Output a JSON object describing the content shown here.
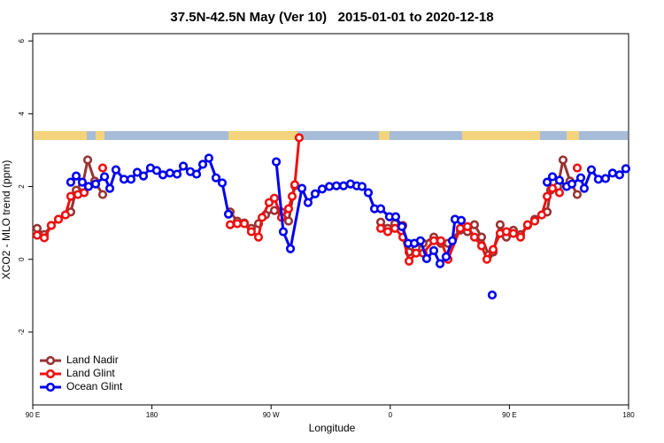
{
  "chart_data": {
    "type": "line",
    "title": "37.5N-42.5N May (Ver 10)   2015-01-01 to 2020-12-18",
    "x_label": "Longitude",
    "y_label": "XCO2 - MLO trend (ppm)",
    "xlim": [
      90,
      540
    ],
    "ylim": [
      -4,
      6.2
    ],
    "xticks": [
      {
        "value": 90,
        "label": "90 E"
      },
      {
        "value": 180,
        "label": "180"
      },
      {
        "value": 270,
        "label": "90 W"
      },
      {
        "value": 360,
        "label": "0"
      },
      {
        "value": 450,
        "label": "90 E"
      },
      {
        "value": 540,
        "label": "180"
      }
    ],
    "yticks": [
      -2,
      0,
      2,
      4,
      6
    ],
    "legend": "bottom-left",
    "series": [
      {
        "name": "Land Nadir",
        "color": "#993333",
        "x": [
          93.3,
          98.7,
          104,
          109.4,
          114.7,
          118.7,
          122.8,
          127.4,
          131.5,
          136.8,
          142.8,
          239.1,
          244.5,
          249.8,
          255.1,
          260.5,
          265.8,
          272.5,
          277.9,
          283.2,
          287.9,
          352.8,
          358.1,
          363.5,
          369.5,
          374.2,
          379.5,
          384.8,
          392.9,
          398.2,
          403.6,
          412.9,
          418.3,
          423.6,
          429,
          434.3,
          437.7,
          443,
          447.7,
          453,
          458.4,
          463.7,
          469.1,
          474.4,
          478.5,
          481.1,
          486.5,
          490.5,
          495.8,
          501.2
        ],
        "values": [
          0.85,
          0.68,
          0.93,
          1.1,
          1.22,
          1.3,
          1.9,
          2.0,
          2.73,
          2.15,
          1.78,
          1.3,
          1.05,
          1.0,
          0.85,
          0.98,
          1.22,
          1.34,
          1.3,
          1.05,
          2.02,
          1.02,
          0.85,
          0.98,
          0.93,
          0.2,
          0.32,
          0.44,
          0.61,
          0.44,
          0.44,
          0.8,
          0.76,
          0.95,
          0.61,
          0.12,
          0.2,
          0.95,
          0.61,
          0.8,
          0.68,
          0.93,
          1.1,
          1.22,
          1.3,
          1.9,
          2.0,
          2.73,
          2.15,
          1.78
        ]
      },
      {
        "name": "Land Glint",
        "color": "#ee1111",
        "x": [
          93.3,
          98.7,
          104,
          109.4,
          114.7,
          118.7,
          124.1,
          128.8,
          142.8,
          239.1,
          244.5,
          249.8,
          255.1,
          260.5,
          263.2,
          268.5,
          272.5,
          277.9,
          283.2,
          285.9,
          287.9,
          291.2,
          352.8,
          358.1,
          363.5,
          369.5,
          374.2,
          379.5,
          384.8,
          392.9,
          398.2,
          403.6,
          412.9,
          418.3,
          423.6,
          429,
          433,
          437.7,
          443,
          447.7,
          453,
          458.4,
          463.7,
          469.1,
          474.4,
          478.5,
          482.5,
          487.8,
          501.2
        ],
        "values": [
          0.66,
          0.59,
          0.93,
          1.1,
          1.22,
          1.73,
          1.78,
          1.83,
          2.51,
          0.95,
          0.98,
          0.98,
          0.76,
          0.61,
          1.15,
          1.56,
          1.68,
          1.15,
          1.39,
          1.73,
          2.05,
          3.34,
          0.85,
          0.76,
          0.85,
          0.61,
          -0.05,
          0.17,
          0.17,
          0.51,
          0.51,
          0,
          0.85,
          0.9,
          0.61,
          0.37,
          0,
          0.27,
          0.71,
          0.76,
          0.71,
          0.61,
          0.95,
          1.05,
          1.22,
          1.73,
          1.95,
          1.83,
          2.51
        ]
      },
      {
        "name": "Ocean Glint",
        "color": "#0000ee",
        "x": [
          118.7,
          122.8,
          127.4,
          132.1,
          137.5,
          144.2,
          148.2,
          152.8,
          158.9,
          164.2,
          168.9,
          173.6,
          178.9,
          183.6,
          188.3,
          193.6,
          199,
          203.7,
          209,
          213.7,
          218.4,
          223,
          228.4,
          233.1,
          237.8,
          273.9,
          279.2,
          284.6,
          293.3,
          297.9,
          303.3,
          308.6,
          314,
          319.3,
          324.7,
          330,
          334.7,
          338.7,
          343.4,
          348.1,
          352.8,
          359.4,
          364.1,
          368.8,
          373.5,
          378.2,
          382.8,
          387.5,
          392.9,
          397.6,
          402.2,
          406.9,
          408.9,
          413.6,
          437,
          478.5,
          482.5,
          487.8,
          493.2,
          497.2,
          503.9,
          506.5,
          511.9,
          517.2,
          522.6,
          527.9,
          533.2,
          537.9
        ],
        "values": [
          2.12,
          2.29,
          2.12,
          2.0,
          2.07,
          2.27,
          1.95,
          2.46,
          2.2,
          2.2,
          2.39,
          2.29,
          2.51,
          2.44,
          2.32,
          2.37,
          2.34,
          2.56,
          2.41,
          2.34,
          2.61,
          2.78,
          2.24,
          2.1,
          1.24,
          2.68,
          0.76,
          0.29,
          1.95,
          1.56,
          1.8,
          1.93,
          2.0,
          2.02,
          2.02,
          2.07,
          2.02,
          2.0,
          1.83,
          1.39,
          1.39,
          1.17,
          1.17,
          0.9,
          0.44,
          0.44,
          0.51,
          0.02,
          0.24,
          -0.12,
          0.07,
          0.51,
          1.1,
          1.07,
          -0.98,
          2.12,
          2.27,
          2.17,
          2.0,
          2.07,
          2.24,
          1.95,
          2.46,
          2.2,
          2.22,
          2.37,
          2.32,
          2.49
        ]
      }
    ]
  }
}
